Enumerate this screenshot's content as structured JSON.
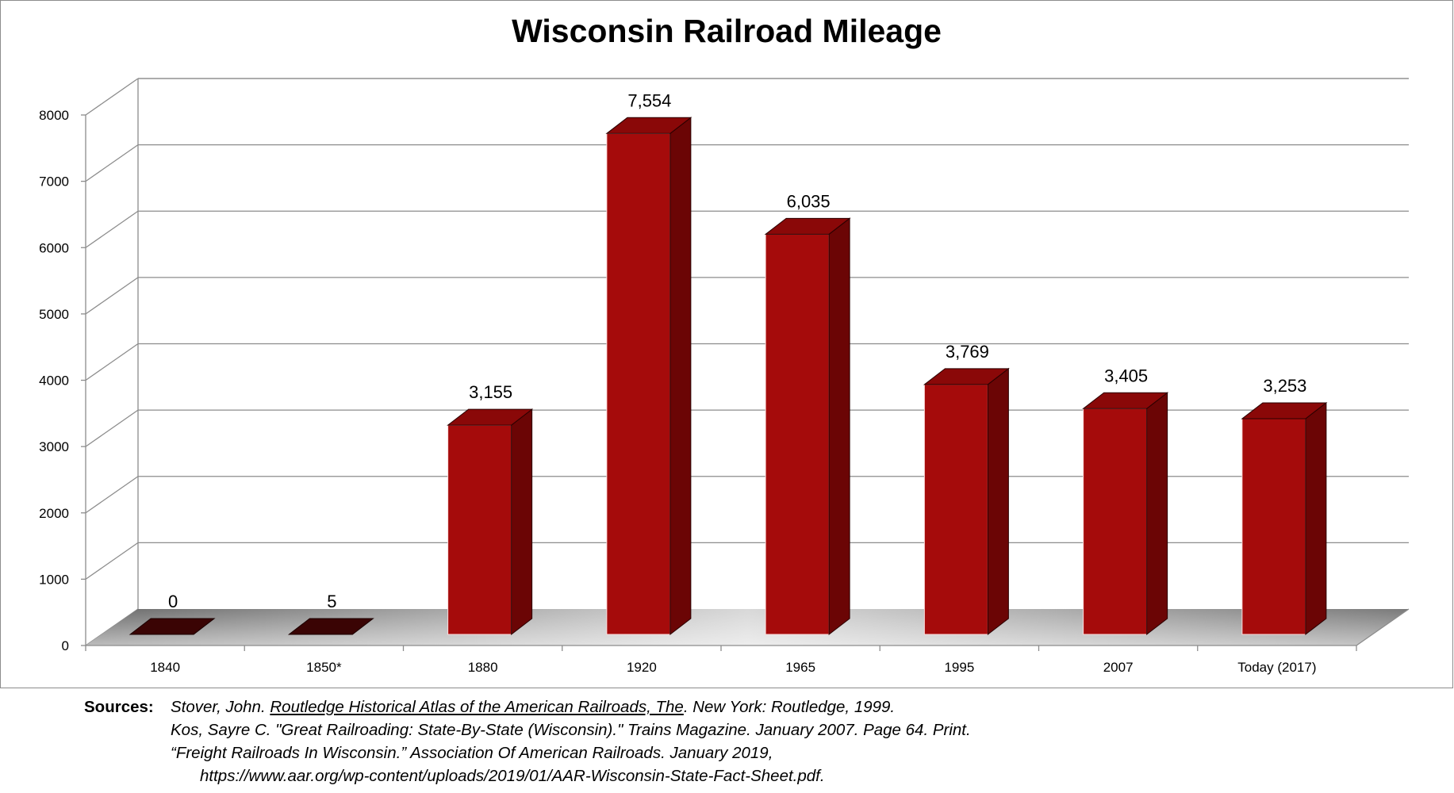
{
  "chart_data": {
    "type": "bar",
    "title": "Wisconsin Railroad Mileage",
    "categories": [
      "1840",
      "1850*",
      "1880",
      "1920",
      "1965",
      "1995",
      "2007",
      "Today  (2017)"
    ],
    "values": [
      0,
      5,
      3155,
      7554,
      6035,
      3769,
      3405,
      3253
    ],
    "value_labels": [
      "0",
      "5",
      "3,155",
      "7,554",
      "6,035",
      "3,769",
      "3,405",
      "3,253"
    ],
    "y_ticks": [
      "0",
      "1000",
      "2000",
      "3000",
      "4000",
      "5000",
      "6000",
      "7000",
      "8000"
    ],
    "ylim": [
      0,
      8000
    ],
    "xlabel": "",
    "ylabel": "",
    "grid": true,
    "style": "3d-column",
    "colors": {
      "bar_front": "#a50b0b",
      "bar_side": "#6b0505",
      "bar_top": "#8a0808",
      "gridline": "#8c8c8c"
    }
  },
  "sources": {
    "label": "Sources:",
    "ref1_before": "Stover, John. ",
    "ref1_title": "Routledge Historical Atlas of the American Railroads, The",
    "ref1_after": ". New York: Routledge, 1999.",
    "ref2": "Kos, Sayre C. \"Great Railroading: State-By-State (Wisconsin).\" Trains Magazine. January 2007. Page 64. Print.",
    "ref3": "“Freight Railroads In Wisconsin.” Association Of American Railroads. January 2019,",
    "ref3_url": "https://www.aar.org/wp-content/uploads/2019/01/AAR-Wisconsin-State-Fact-Sheet.pdf."
  }
}
